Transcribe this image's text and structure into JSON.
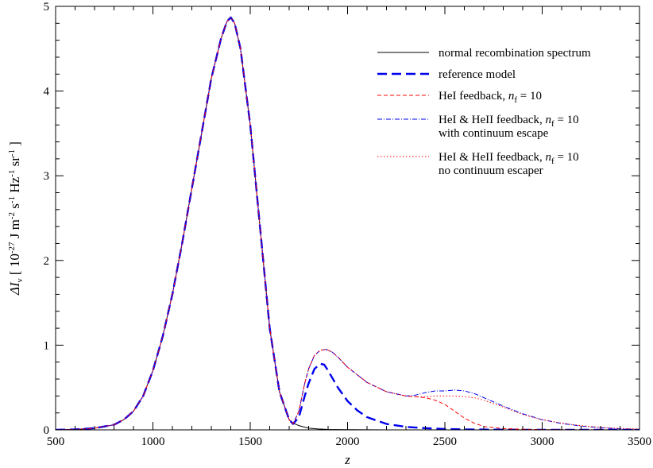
{
  "chart_data": {
    "type": "line",
    "xlabel": "z",
    "ylabel": {
      "parts": [
        {
          "text": "ΔI",
          "style": "italic"
        },
        {
          "text": "ν",
          "sub": true
        },
        {
          "text": " [ 10"
        },
        {
          "text": "-27",
          "sup": true
        },
        {
          "text": " J m"
        },
        {
          "text": "-2",
          "sup": true
        },
        {
          "text": " s"
        },
        {
          "text": "-1",
          "sup": true
        },
        {
          "text": " Hz"
        },
        {
          "text": "-1",
          "sup": true
        },
        {
          "text": " sr"
        },
        {
          "text": "-1",
          "sup": true
        },
        {
          "text": " ]"
        }
      ]
    },
    "xlim": [
      500,
      3500
    ],
    "ylim": [
      0,
      5
    ],
    "xticks": [
      500,
      1000,
      1500,
      2000,
      2500,
      3000,
      3500
    ],
    "yticks": [
      0,
      1,
      2,
      3,
      4,
      5
    ],
    "x_minor_step": 100,
    "y_minor_step": 0.2,
    "grid": false,
    "legend_position": "top-right",
    "series": [
      {
        "name": "normal recombination spectrum",
        "legend": [
          [
            {
              "text": "normal recombination spectrum"
            }
          ]
        ],
        "color": "#000000",
        "dash": "",
        "width": 1,
        "x": [
          500,
          600,
          700,
          800,
          850,
          900,
          950,
          1000,
          1050,
          1100,
          1150,
          1200,
          1250,
          1300,
          1350,
          1380,
          1400,
          1420,
          1450,
          1500,
          1550,
          1600,
          1650,
          1700,
          1720,
          1750,
          1800,
          1850,
          1900,
          2000,
          2200,
          2500,
          3000,
          3500
        ],
        "y": [
          0.0,
          0.005,
          0.02,
          0.06,
          0.12,
          0.22,
          0.4,
          0.7,
          1.1,
          1.6,
          2.2,
          2.85,
          3.5,
          4.15,
          4.62,
          4.82,
          4.87,
          4.8,
          4.5,
          3.6,
          2.4,
          1.2,
          0.45,
          0.12,
          0.08,
          0.05,
          0.02,
          0.01,
          0.005,
          0.002,
          0.0,
          0.0,
          0.0,
          0.0
        ]
      },
      {
        "name": "reference model",
        "legend": [
          [
            {
              "text": "reference model"
            }
          ]
        ],
        "color": "#0000ee",
        "dash": "12,6",
        "width": 2.4,
        "x": [
          500,
          600,
          700,
          800,
          850,
          900,
          950,
          1000,
          1050,
          1100,
          1150,
          1200,
          1250,
          1300,
          1350,
          1380,
          1400,
          1420,
          1450,
          1500,
          1550,
          1600,
          1650,
          1700,
          1720,
          1750,
          1780,
          1800,
          1830,
          1860,
          1880,
          1900,
          1950,
          2000,
          2050,
          2100,
          2200,
          2300,
          2400,
          2500,
          2600,
          2800,
          3000,
          3500
        ],
        "y": [
          0.0,
          0.005,
          0.02,
          0.06,
          0.12,
          0.22,
          0.4,
          0.7,
          1.1,
          1.6,
          2.2,
          2.85,
          3.5,
          4.15,
          4.62,
          4.82,
          4.87,
          4.8,
          4.5,
          3.6,
          2.4,
          1.2,
          0.45,
          0.12,
          0.07,
          0.15,
          0.4,
          0.55,
          0.72,
          0.78,
          0.77,
          0.7,
          0.5,
          0.34,
          0.23,
          0.15,
          0.07,
          0.035,
          0.02,
          0.01,
          0.005,
          0.002,
          0.0,
          0.0
        ]
      },
      {
        "name": "HeI feedback, nf = 10",
        "legend": [
          [
            {
              "text": "HeI feedback, "
            },
            {
              "text": "n",
              "style": "italic"
            },
            {
              "text": "f",
              "sub": true
            },
            {
              "text": " = 10"
            }
          ]
        ],
        "color": "#ff0000",
        "dash": "5,3",
        "width": 1,
        "x": [
          500,
          600,
          700,
          800,
          850,
          900,
          950,
          1000,
          1050,
          1100,
          1150,
          1200,
          1250,
          1300,
          1350,
          1380,
          1400,
          1420,
          1450,
          1500,
          1550,
          1600,
          1650,
          1700,
          1720,
          1750,
          1780,
          1800,
          1830,
          1860,
          1890,
          1920,
          1950,
          2000,
          2100,
          2200,
          2300,
          2400,
          2450,
          2500,
          2550,
          2600,
          2650,
          2700,
          2800,
          2900,
          3000,
          3200,
          3500
        ],
        "y": [
          0.0,
          0.005,
          0.02,
          0.06,
          0.12,
          0.22,
          0.4,
          0.7,
          1.1,
          1.6,
          2.2,
          2.85,
          3.5,
          4.15,
          4.62,
          4.82,
          4.87,
          4.8,
          4.5,
          3.6,
          2.4,
          1.2,
          0.45,
          0.12,
          0.07,
          0.22,
          0.55,
          0.72,
          0.88,
          0.94,
          0.95,
          0.92,
          0.86,
          0.74,
          0.56,
          0.45,
          0.4,
          0.38,
          0.35,
          0.3,
          0.22,
          0.14,
          0.08,
          0.04,
          0.015,
          0.007,
          0.003,
          0.001,
          0.0
        ]
      },
      {
        "name": "HeI & HeII feedback, nf = 10 with continuum escape",
        "legend": [
          [
            {
              "text": "HeI & HeII feedback, "
            },
            {
              "text": "n",
              "style": "italic"
            },
            {
              "text": "f",
              "sub": true
            },
            {
              "text": " = 10"
            }
          ],
          [
            {
              "text": "with continuum escape"
            }
          ]
        ],
        "color": "#0000ee",
        "dash": "6,2,1,2",
        "width": 1,
        "x": [
          500,
          600,
          700,
          800,
          850,
          900,
          950,
          1000,
          1050,
          1100,
          1150,
          1200,
          1250,
          1300,
          1350,
          1380,
          1400,
          1420,
          1450,
          1500,
          1550,
          1600,
          1650,
          1700,
          1720,
          1750,
          1780,
          1800,
          1830,
          1860,
          1890,
          1920,
          1950,
          2000,
          2100,
          2200,
          2300,
          2350,
          2400,
          2450,
          2500,
          2550,
          2600,
          2650,
          2700,
          2800,
          2900,
          3000,
          3100,
          3200,
          3300,
          3400,
          3500
        ],
        "y": [
          0.0,
          0.005,
          0.02,
          0.06,
          0.12,
          0.22,
          0.4,
          0.7,
          1.1,
          1.6,
          2.2,
          2.85,
          3.5,
          4.15,
          4.62,
          4.82,
          4.87,
          4.8,
          4.5,
          3.6,
          2.4,
          1.2,
          0.45,
          0.12,
          0.07,
          0.22,
          0.55,
          0.72,
          0.88,
          0.94,
          0.95,
          0.92,
          0.86,
          0.74,
          0.56,
          0.45,
          0.4,
          0.41,
          0.44,
          0.46,
          0.46,
          0.47,
          0.46,
          0.43,
          0.38,
          0.28,
          0.19,
          0.12,
          0.075,
          0.045,
          0.025,
          0.012,
          0.005
        ]
      },
      {
        "name": "HeI & HeII feedback, nf = 10 no continuum escaper",
        "legend": [
          [
            {
              "text": "HeI & HeII feedback, "
            },
            {
              "text": "n",
              "style": "italic"
            },
            {
              "text": "f",
              "sub": true
            },
            {
              "text": " = 10"
            }
          ],
          [
            {
              "text": "no continuum escaper"
            }
          ]
        ],
        "color": "#ff0000",
        "dash": "1.5,2.5",
        "width": 1,
        "x": [
          500,
          600,
          700,
          800,
          850,
          900,
          950,
          1000,
          1050,
          1100,
          1150,
          1200,
          1250,
          1300,
          1350,
          1380,
          1400,
          1420,
          1450,
          1500,
          1550,
          1600,
          1650,
          1700,
          1720,
          1750,
          1780,
          1800,
          1830,
          1860,
          1890,
          1920,
          1950,
          2000,
          2100,
          2200,
          2300,
          2350,
          2400,
          2450,
          2500,
          2550,
          2600,
          2650,
          2700,
          2800,
          2900,
          3000,
          3100,
          3200,
          3300,
          3400,
          3500
        ],
        "y": [
          0.0,
          0.005,
          0.02,
          0.06,
          0.12,
          0.22,
          0.4,
          0.7,
          1.1,
          1.6,
          2.2,
          2.85,
          3.5,
          4.15,
          4.62,
          4.82,
          4.87,
          4.8,
          4.5,
          3.6,
          2.4,
          1.2,
          0.45,
          0.12,
          0.07,
          0.22,
          0.55,
          0.72,
          0.88,
          0.94,
          0.95,
          0.92,
          0.86,
          0.74,
          0.56,
          0.45,
          0.4,
          0.39,
          0.39,
          0.4,
          0.4,
          0.4,
          0.39,
          0.38,
          0.35,
          0.27,
          0.18,
          0.12,
          0.08,
          0.05,
          0.03,
          0.017,
          0.01
        ]
      }
    ]
  }
}
